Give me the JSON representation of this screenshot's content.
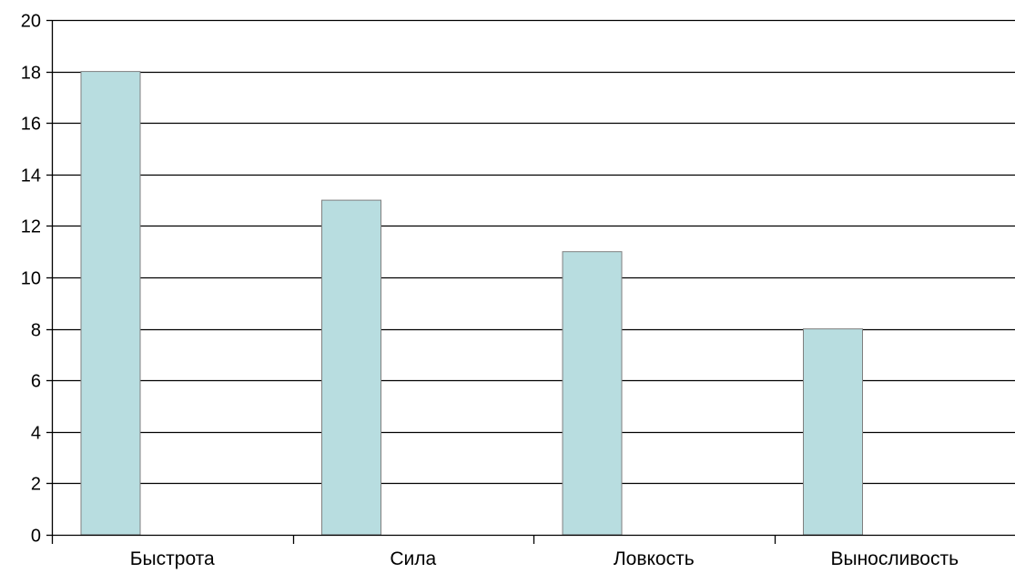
{
  "chart_data": {
    "type": "bar",
    "title": "",
    "xlabel": "",
    "ylabel": "",
    "categories": [
      "Быстрота",
      "Сила",
      "Ловкость",
      "Выносливость"
    ],
    "values": [
      18,
      13,
      11,
      8
    ],
    "ylim": [
      0,
      20
    ],
    "yticks": [
      "0",
      "2",
      "4",
      "6",
      "8",
      "10",
      "12",
      "14",
      "16",
      "18",
      "20"
    ],
    "grid": true,
    "legend": "none",
    "colors": {
      "bar_fill": "#b8dde0",
      "bar_stroke": "#7f7f7f",
      "gridline": "#000000",
      "axis": "#000000"
    }
  }
}
